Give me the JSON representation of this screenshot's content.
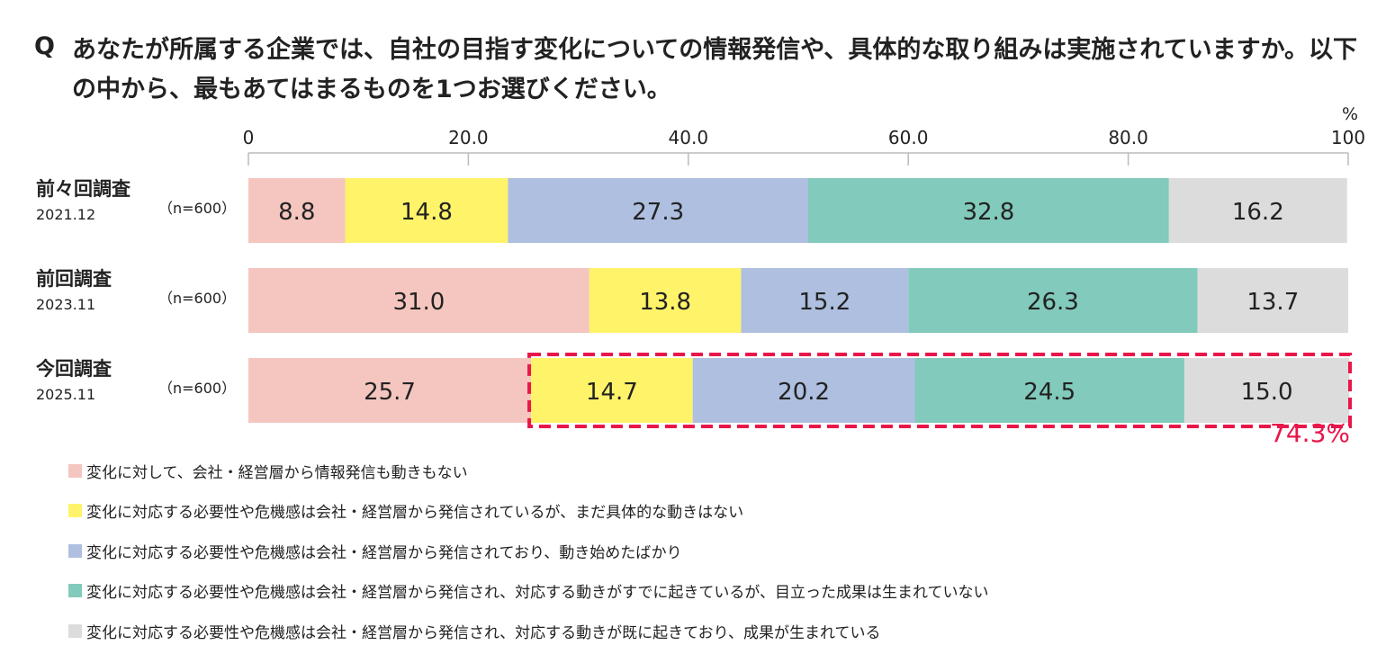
{
  "question": {
    "mark": "Q",
    "text": "あなたが所属する企業では、自社の目指す変化についての情報発信や、具体的な取り組みは実施されていますか。以下の中から、最もあてはまるものを1つお選びください。"
  },
  "colors": [
    "#f5c6bf",
    "#fff369",
    "#aebfe0",
    "#82cabb",
    "#dcdcdc"
  ],
  "highlight_color": "#e8174a",
  "chart_data": {
    "type": "bar",
    "orientation": "horizontal",
    "stacked": true,
    "unit": "%",
    "xlim": [
      0,
      100
    ],
    "ticks": [
      "0",
      "20.0",
      "40.0",
      "60.0",
      "80.0",
      "100"
    ],
    "tick_values": [
      0,
      20,
      40,
      60,
      80,
      100
    ],
    "rows": [
      {
        "name": "前々回調査",
        "date": "2021.12",
        "n": "（n=600）",
        "values": [
          8.8,
          14.8,
          27.3,
          32.8,
          16.2
        ],
        "labels": [
          "8.8",
          "14.8",
          "27.3",
          "32.8",
          "16.2"
        ]
      },
      {
        "name": "前回調査",
        "date": "2023.11",
        "n": "（n=600）",
        "values": [
          31.0,
          13.8,
          15.2,
          26.3,
          13.7
        ],
        "labels": [
          "31.0",
          "13.8",
          "15.2",
          "26.3",
          "13.7"
        ]
      },
      {
        "name": "今回調査",
        "date": "2025.11",
        "n": "（n=600）",
        "values": [
          25.7,
          14.7,
          20.2,
          24.5,
          15.0
        ],
        "labels": [
          "25.7",
          "14.7",
          "20.2",
          "24.5",
          "15.0"
        ]
      }
    ],
    "legend": [
      "変化に対して、会社・経営層から情報発信も動きもない",
      "変化に対応する必要性や危機感は会社・経営層から発信されているが、まだ具体的な動きはない",
      "変化に対応する必要性や危機感は会社・経営層から発信されており、動き始めたばかり",
      "変化に対応する必要性や危機感は会社・経営層から発信され、対応する動きがすでに起きているが、目立った成果は生まれていない",
      "変化に対応する必要性や危機感は会社・経営層から発信され、対応する動きが既に起きており、成果が生まれている"
    ],
    "highlight": {
      "row": 2,
      "from_segment": 1,
      "label": "74.3%"
    }
  }
}
